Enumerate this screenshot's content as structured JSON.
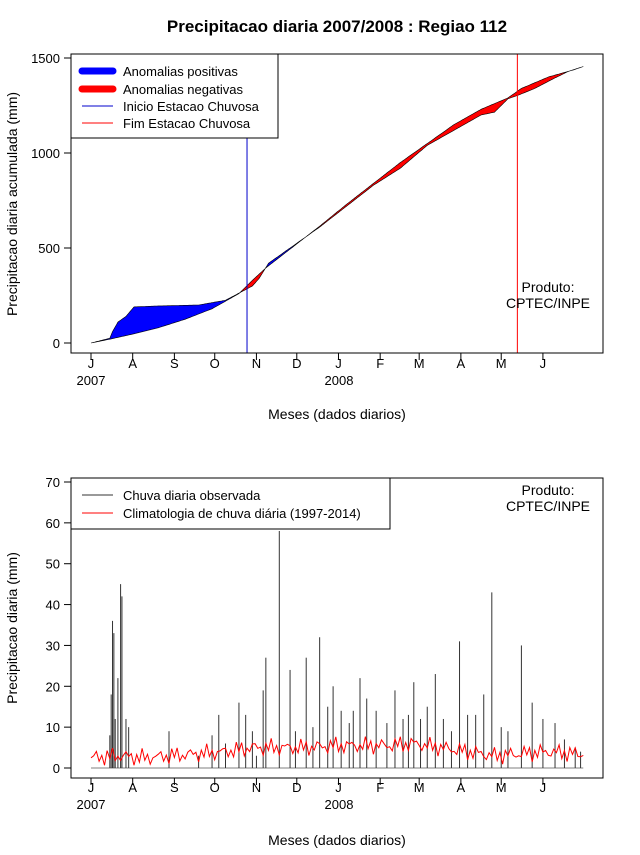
{
  "chart_data": [
    {
      "type": "area",
      "title": "Precipitacao diaria 2007/2008 : Regiao 112",
      "xlabel": "Meses (dados diarios)",
      "ylabel": "Precipitacao diaria acumulada (mm)",
      "ylim": [
        0,
        1500
      ],
      "yticks": [
        "0",
        "500",
        "1000",
        "1500"
      ],
      "x_ticks": [
        "J",
        "A",
        "S",
        "O",
        "N",
        "D",
        "J",
        "F",
        "M",
        "A",
        "M",
        "J"
      ],
      "year_labels": [
        "2007",
        "2008"
      ],
      "legend": [
        "Anomalias positivas",
        "Anomalias negativas",
        "Inicio Estacao Chuvosa",
        "Fim Estacao Chuvosa"
      ],
      "note_line1": "Produto:",
      "note_line2": "CPTEC/INPE",
      "colors": {
        "positive": "#0000ff",
        "negative": "#ff0000",
        "onset": "#0000cc",
        "end": "#ff0000"
      },
      "onset_day": 116,
      "end_day": 317,
      "climatology_cumulative": {
        "day": [
          0,
          14,
          30,
          50,
          70,
          90,
          110,
          120,
          130,
          150,
          170,
          190,
          210,
          230,
          250,
          270,
          290,
          310,
          320,
          340,
          360,
          366
        ],
        "mm": [
          0,
          20,
          45,
          80,
          125,
          180,
          260,
          330,
          395,
          505,
          615,
          730,
          840,
          950,
          1050,
          1150,
          1230,
          1290,
          1340,
          1400,
          1440,
          1455
        ]
      },
      "observed_cumulative": {
        "day": [
          0,
          14,
          16,
          20,
          26,
          32,
          50,
          80,
          100,
          120,
          125,
          132,
          150,
          170,
          190,
          210,
          230,
          250,
          270,
          290,
          300,
          310,
          318,
          330,
          345,
          355,
          366
        ],
        "mm": [
          0,
          25,
          60,
          110,
          140,
          190,
          195,
          200,
          225,
          300,
          340,
          420,
          510,
          610,
          720,
          830,
          920,
          1040,
          1120,
          1200,
          1215,
          1285,
          1305,
          1340,
          1395,
          1430,
          1455
        ]
      }
    },
    {
      "type": "bar",
      "title": "",
      "xlabel": "Meses (dados diarios)",
      "ylabel": "Precipitacao diaria (mm)",
      "ylim": [
        0,
        70
      ],
      "yticks": [
        "0",
        "10",
        "20",
        "30",
        "40",
        "50",
        "60",
        "70"
      ],
      "x_ticks": [
        "J",
        "A",
        "S",
        "O",
        "N",
        "D",
        "J",
        "F",
        "M",
        "A",
        "M",
        "J"
      ],
      "year_labels": [
        "2007",
        "2008"
      ],
      "legend": [
        "Chuva diaria observada",
        "Climatologia de chuva diária (1997-2014)"
      ],
      "note_line1": "Produto:",
      "note_line2": "CPTEC/INPE",
      "colors": {
        "observed": "#333333",
        "climatology": "#ff0000"
      },
      "observed_daily": {
        "day": [
          14,
          15,
          16,
          17,
          18,
          20,
          22,
          23,
          26,
          28,
          58,
          80,
          90,
          95,
          100,
          110,
          115,
          120,
          123,
          128,
          130,
          140,
          148,
          152,
          160,
          165,
          170,
          176,
          180,
          186,
          192,
          195,
          200,
          205,
          212,
          220,
          226,
          232,
          236,
          240,
          245,
          250,
          256,
          262,
          268,
          274,
          280,
          286,
          292,
          298,
          305,
          310,
          320,
          328,
          336,
          345,
          352,
          360,
          364
        ],
        "mm": [
          8,
          18,
          36,
          33,
          12,
          22,
          45,
          42,
          12,
          10,
          9,
          3,
          8,
          13,
          6,
          16,
          13,
          9,
          3,
          19,
          27,
          58,
          24,
          9,
          27,
          10,
          32,
          15,
          20,
          14,
          11,
          14,
          22,
          17,
          14,
          11,
          19,
          12,
          13,
          21,
          12,
          15,
          23,
          12,
          9,
          31,
          13,
          13,
          18,
          43,
          10,
          9,
          30,
          16,
          12,
          11,
          7,
          5,
          4
        ]
      },
      "climatology_daily": {
        "day": [
          0,
          20,
          40,
          60,
          80,
          100,
          120,
          140,
          160,
          180,
          200,
          220,
          240,
          260,
          280,
          300,
          320,
          340,
          360,
          366
        ],
        "mm": [
          2.5,
          3,
          2.5,
          3,
          3.5,
          4,
          5,
          5,
          5,
          5.5,
          5.5,
          5.5,
          6,
          5,
          4,
          3,
          3.5,
          4,
          3.5,
          3.5
        ]
      }
    }
  ]
}
